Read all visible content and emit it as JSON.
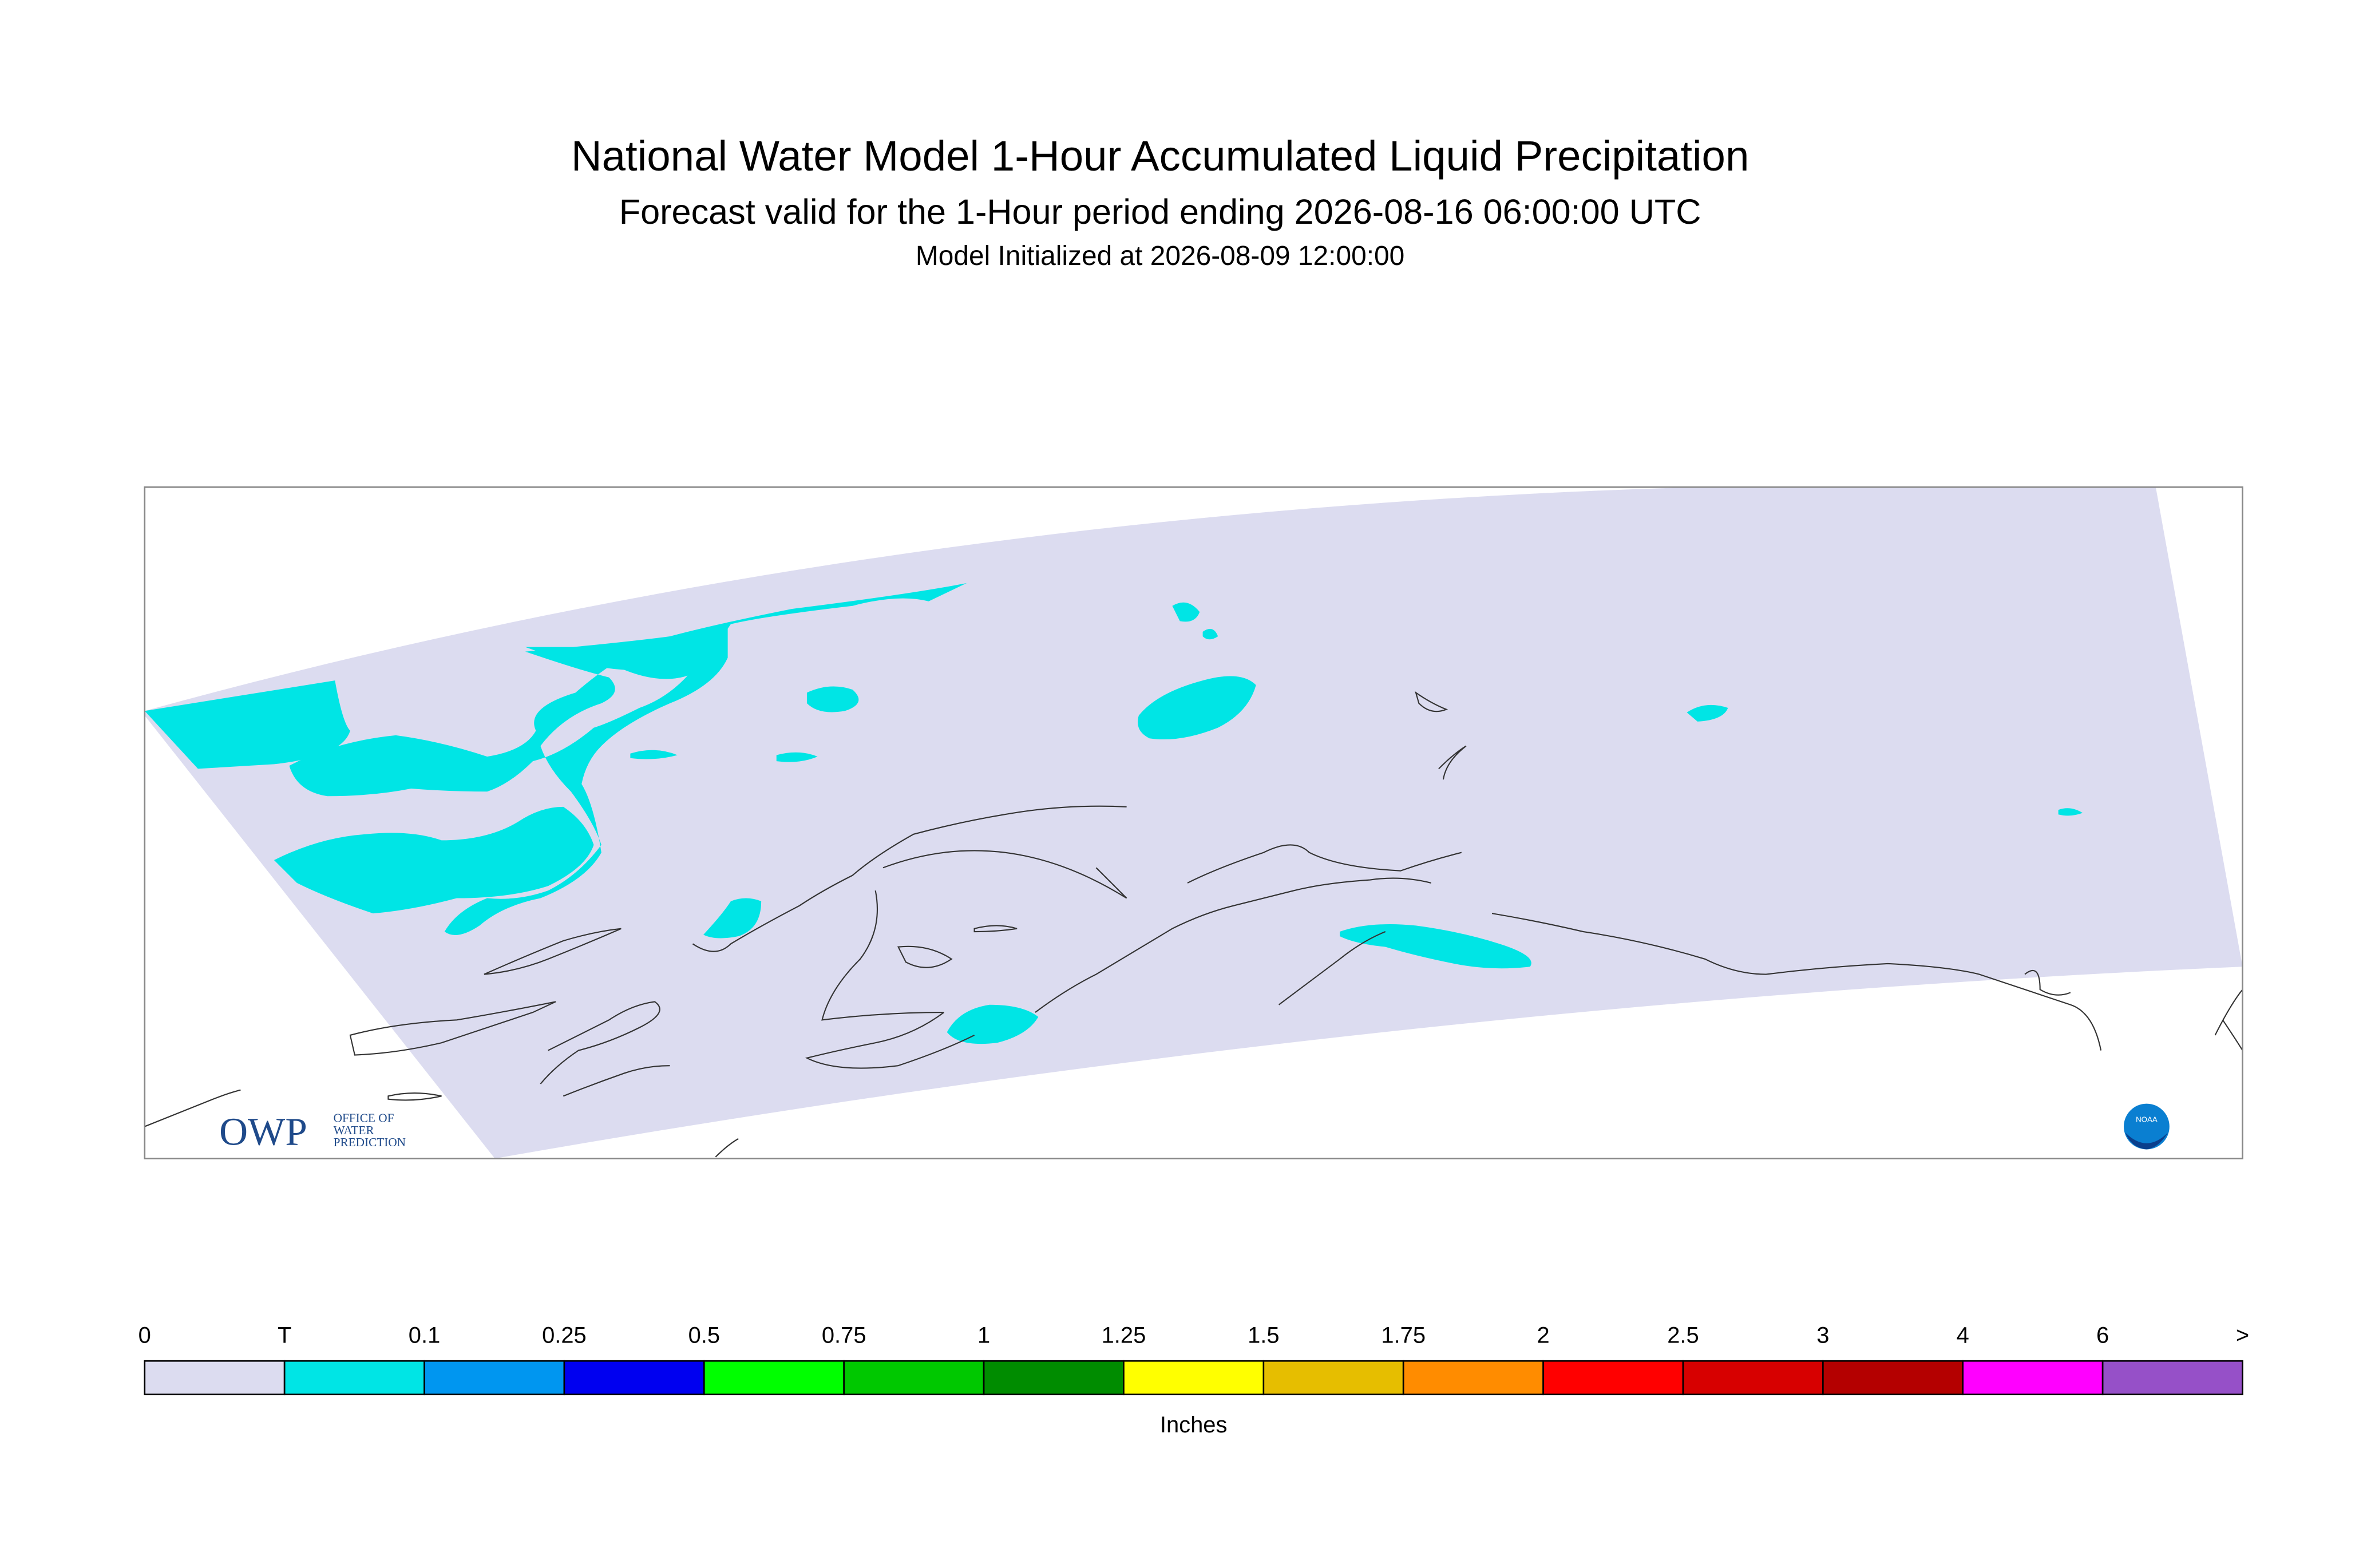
{
  "header": {
    "title": "National Water Model 1-Hour Accumulated Liquid Precipitation",
    "subtitle": "Forecast valid for the 1-Hour period ending 2026-08-16 06:00:00 UTC",
    "initialized": "Model Initialized at 2026-08-09 12:00:00"
  },
  "logos": {
    "owp": "OWP",
    "owp_lines": [
      "OFFICE OF",
      "WATER",
      "PREDICTION"
    ],
    "noaa": "NOAA"
  },
  "colorbar": {
    "labels": [
      "0",
      "T",
      "0.1",
      "0.25",
      "0.5",
      "0.75",
      "1",
      "1.25",
      "1.5",
      "1.75",
      "2",
      "2.5",
      "3",
      "4",
      "6",
      ">"
    ],
    "colors": [
      "#dcdcf0",
      "#00e5e5",
      "#0096f0",
      "#0000f0",
      "#00ff00",
      "#00c800",
      "#008c00",
      "#ffff00",
      "#e6be00",
      "#ff8c00",
      "#ff0000",
      "#d70000",
      "#b40000",
      "#ff00ff",
      "#9650c8"
    ],
    "units": "Inches"
  }
}
